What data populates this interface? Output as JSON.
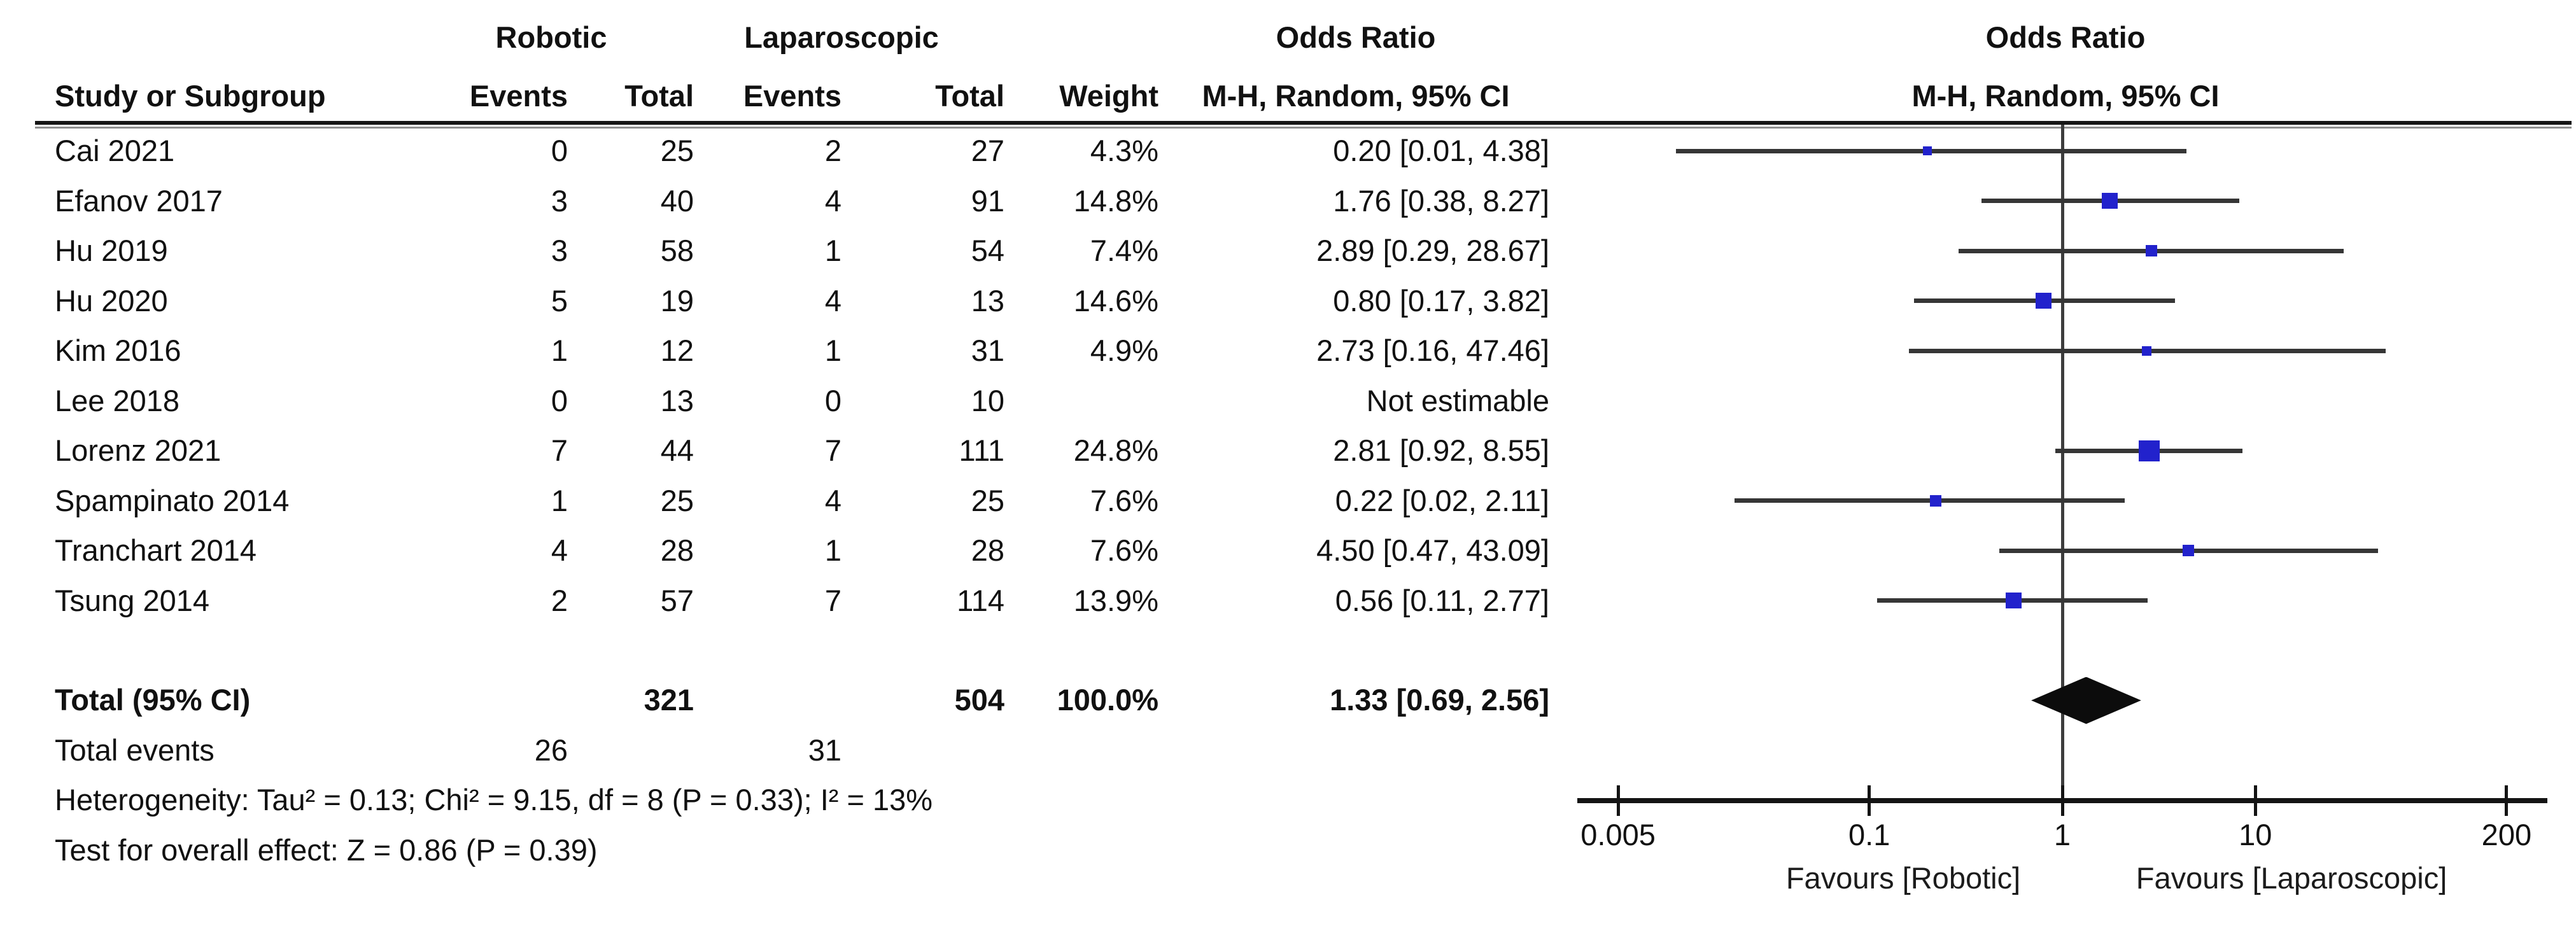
{
  "header": {
    "group_robotic": "Robotic",
    "group_laparoscopic": "Laparoscopic",
    "col_study": "Study or Subgroup",
    "col_events_robotic": "Events",
    "col_total_robotic": "Total",
    "col_events_lap": "Events",
    "col_total_lap": "Total",
    "col_weight": "Weight",
    "or_stat_title": "Odds Ratio",
    "or_stat_sub": "M-H, Random, 95% CI",
    "or_plot_title": "Odds Ratio",
    "or_plot_sub": "M-H, Random, 95% CI"
  },
  "totals": {
    "label": "Total (95% CI)",
    "total_robotic": "321",
    "total_lap": "504",
    "weight_text": "100.0%",
    "or_text": "1.33 [0.69, 2.56]",
    "or": 1.33,
    "ci_low": 0.69,
    "ci_high": 2.56,
    "events_label": "Total events",
    "events_robotic": "26",
    "events_lap": "31"
  },
  "stats": {
    "heterogeneity": "Heterogeneity: Tau² = 0.13; Chi² = 9.15, df = 8 (P = 0.33); I² = 13%",
    "overall_effect": "Test for overall effect: Z = 0.86 (P = 0.39)"
  },
  "axis": {
    "favours_left": "Favours [Robotic]",
    "favours_right": "Favours [Laparoscopic]"
  },
  "colors": {
    "square_blue": "#2222cc",
    "diamond_black": "#0c0c0c",
    "ci_line": "#363636",
    "axis_black": "#141414",
    "text": "#111111"
  },
  "chart_data": {
    "type": "scatter",
    "subtype": "forest-plot-odds-ratio",
    "effect_measure": "Odds Ratio, M-H, Random, 95% CI",
    "x_scale": "log",
    "x_range": [
      0.005,
      200
    ],
    "x_ticks": [
      0.005,
      0.1,
      1,
      10,
      200
    ],
    "x_tick_labels": [
      "0.005",
      "0.1",
      "1",
      "10",
      "200"
    ],
    "null_line": 1,
    "studies": [
      {
        "study": "Cai 2021",
        "robotic_events": "0",
        "robotic_total": "25",
        "lap_events": "2",
        "lap_total": "27",
        "weight_text": "4.3%",
        "weight_pct": 4.3,
        "or": 0.2,
        "ci_low": 0.01,
        "ci_high": 4.38,
        "or_text": "0.20 [0.01, 4.38]"
      },
      {
        "study": "Efanov 2017",
        "robotic_events": "3",
        "robotic_total": "40",
        "lap_events": "4",
        "lap_total": "91",
        "weight_text": "14.8%",
        "weight_pct": 14.8,
        "or": 1.76,
        "ci_low": 0.38,
        "ci_high": 8.27,
        "or_text": "1.76 [0.38, 8.27]"
      },
      {
        "study": "Hu 2019",
        "robotic_events": "3",
        "robotic_total": "58",
        "lap_events": "1",
        "lap_total": "54",
        "weight_text": "7.4%",
        "weight_pct": 7.4,
        "or": 2.89,
        "ci_low": 0.29,
        "ci_high": 28.67,
        "or_text": "2.89 [0.29, 28.67]"
      },
      {
        "study": "Hu 2020",
        "robotic_events": "5",
        "robotic_total": "19",
        "lap_events": "4",
        "lap_total": "13",
        "weight_text": "14.6%",
        "weight_pct": 14.6,
        "or": 0.8,
        "ci_low": 0.17,
        "ci_high": 3.82,
        "or_text": "0.80 [0.17, 3.82]"
      },
      {
        "study": "Kim 2016",
        "robotic_events": "1",
        "robotic_total": "12",
        "lap_events": "1",
        "lap_total": "31",
        "weight_text": "4.9%",
        "weight_pct": 4.9,
        "or": 2.73,
        "ci_low": 0.16,
        "ci_high": 47.46,
        "or_text": "2.73 [0.16, 47.46]"
      },
      {
        "study": "Lee 2018",
        "robotic_events": "0",
        "robotic_total": "13",
        "lap_events": "0",
        "lap_total": "10",
        "weight_text": "",
        "weight_pct": 0,
        "or": null,
        "ci_low": null,
        "ci_high": null,
        "or_text": "Not estimable"
      },
      {
        "study": "Lorenz 2021",
        "robotic_events": "7",
        "robotic_total": "44",
        "lap_events": "7",
        "lap_total": "111",
        "weight_text": "24.8%",
        "weight_pct": 24.8,
        "or": 2.81,
        "ci_low": 0.92,
        "ci_high": 8.55,
        "or_text": "2.81 [0.92, 8.55]"
      },
      {
        "study": "Spampinato 2014",
        "robotic_events": "1",
        "robotic_total": "25",
        "lap_events": "4",
        "lap_total": "25",
        "weight_text": "7.6%",
        "weight_pct": 7.6,
        "or": 0.22,
        "ci_low": 0.02,
        "ci_high": 2.11,
        "or_text": "0.22 [0.02, 2.11]"
      },
      {
        "study": "Tranchart 2014",
        "robotic_events": "4",
        "robotic_total": "28",
        "lap_events": "1",
        "lap_total": "28",
        "weight_text": "7.6%",
        "weight_pct": 7.6,
        "or": 4.5,
        "ci_low": 0.47,
        "ci_high": 43.09,
        "or_text": "4.50 [0.47, 43.09]"
      },
      {
        "study": "Tsung 2014",
        "robotic_events": "2",
        "robotic_total": "57",
        "lap_events": "7",
        "lap_total": "114",
        "weight_text": "13.9%",
        "weight_pct": 13.9,
        "or": 0.56,
        "ci_low": 0.11,
        "ci_high": 2.77,
        "or_text": "0.56 [0.11, 2.77]"
      }
    ],
    "total": {
      "label": "Total (95% CI)",
      "robotic_total": 321,
      "lap_total": 504,
      "weight_pct": 100.0,
      "or": 1.33,
      "ci_low": 0.69,
      "ci_high": 2.56
    },
    "total_events": {
      "robotic": 26,
      "laparoscopic": 31
    },
    "heterogeneity": {
      "tau2": 0.13,
      "chi2": 9.15,
      "df": 8,
      "p": 0.33,
      "i2_pct": 13
    },
    "overall_effect": {
      "z": 0.86,
      "p": 0.39
    },
    "footer_labels": [
      "Favours [Robotic]",
      "Favours [Laparoscopic]"
    ]
  }
}
